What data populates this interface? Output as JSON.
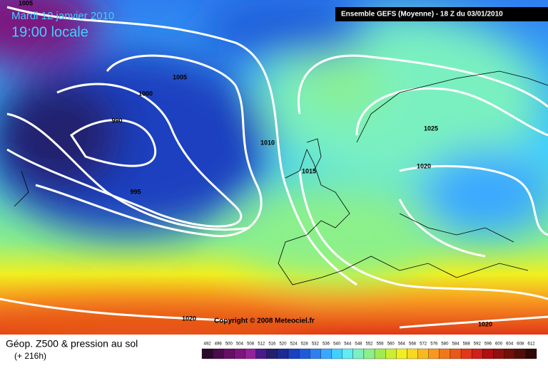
{
  "header": {
    "date": "Mardi 12 janvier 2010",
    "time": "19:00 locale",
    "model": "Ensemble GEFS (Moyenne)  - 18 Z du 03/01/2010"
  },
  "copyright": "Copyright © 2008 Meteociel.fr",
  "footer": {
    "title": "Géop. Z500 & pression au sol",
    "subtitle": "(+ 216h)"
  },
  "isobar_labels": [
    "1005",
    "1005",
    "1000",
    "990",
    "995",
    "1010",
    "1015",
    "1025",
    "1020",
    "1020",
    "1020"
  ],
  "colorbar": {
    "labels": [
      "492",
      "496",
      "500",
      "504",
      "508",
      "512",
      "516",
      "520",
      "524",
      "528",
      "532",
      "536",
      "540",
      "544",
      "548",
      "552",
      "556",
      "560",
      "564",
      "568",
      "572",
      "576",
      "580",
      "584",
      "588",
      "592",
      "596",
      "600",
      "604",
      "608",
      "612"
    ],
    "colors": [
      "#2a0a2a",
      "#4a0c4a",
      "#660f66",
      "#7e147e",
      "#94229a",
      "#4a1a8c",
      "#22206e",
      "#1c2a96",
      "#1b40c0",
      "#1f5ad8",
      "#2f7ff0",
      "#3aa8ff",
      "#40d0ff",
      "#60ecf0",
      "#7af0c0",
      "#8cf08a",
      "#a0ec50",
      "#c8f030",
      "#f0f020",
      "#f8d820",
      "#f8b820",
      "#f89820",
      "#f07818",
      "#e85818",
      "#e03818",
      "#d02018",
      "#b01010",
      "#901010",
      "#701008",
      "#501008",
      "#300808"
    ]
  }
}
